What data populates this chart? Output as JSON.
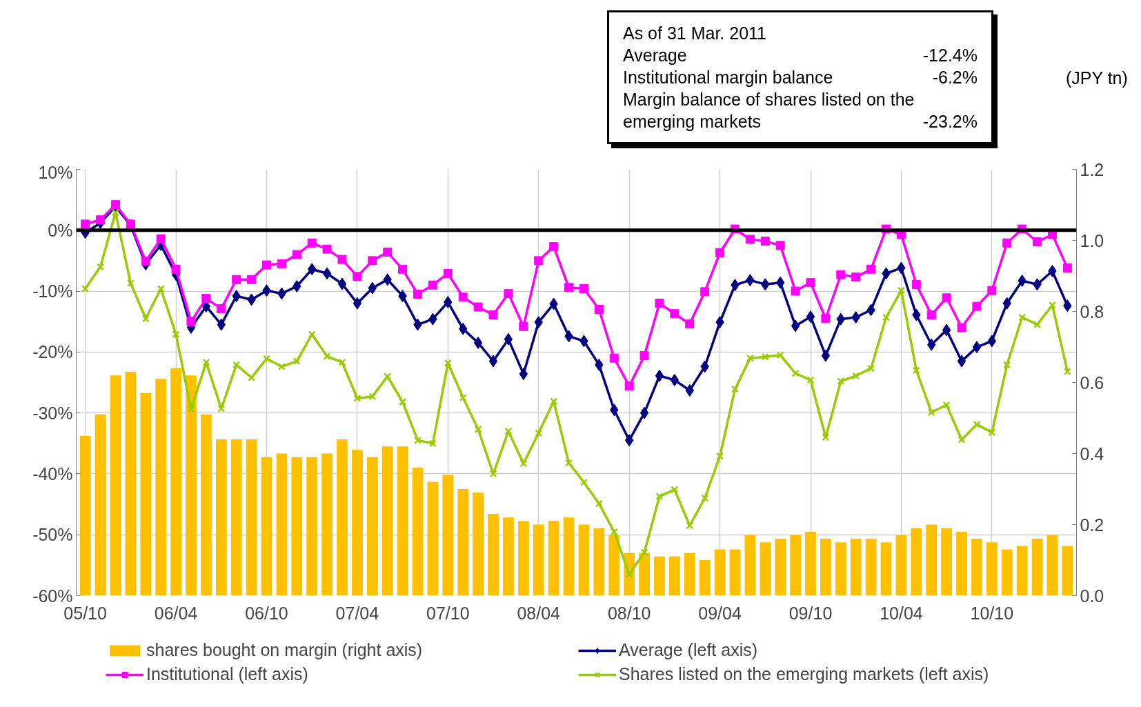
{
  "chart_data": {
    "type": "line",
    "categories": [
      "05/10",
      null,
      null,
      null,
      null,
      null,
      "06/04",
      null,
      null,
      null,
      null,
      null,
      "06/10",
      null,
      null,
      null,
      null,
      null,
      "07/04",
      null,
      null,
      null,
      null,
      null,
      "07/10",
      null,
      null,
      null,
      null,
      null,
      "08/04",
      null,
      null,
      null,
      null,
      null,
      "08/10",
      null,
      null,
      null,
      null,
      null,
      "09/04",
      null,
      null,
      null,
      null,
      null,
      "09/10",
      null,
      null,
      null,
      null,
      null,
      "10/04",
      null,
      null,
      null,
      null,
      null,
      "10/10",
      null,
      null,
      null,
      null,
      null
    ],
    "series": [
      {
        "name": "shares bought on margin (right axis)",
        "type": "bar",
        "axis": "y2",
        "color": "#ffc000",
        "values": [
          0.45,
          0.51,
          0.62,
          0.63,
          0.57,
          0.61,
          0.64,
          0.62,
          0.51,
          0.44,
          0.44,
          0.44,
          0.39,
          0.4,
          0.39,
          0.39,
          0.4,
          0.44,
          0.41,
          0.39,
          0.42,
          0.42,
          0.36,
          0.32,
          0.34,
          0.3,
          0.29,
          0.23,
          0.22,
          0.21,
          0.2,
          0.21,
          0.22,
          0.2,
          0.19,
          0.17,
          0.12,
          0.12,
          0.11,
          0.11,
          0.12,
          0.1,
          0.13,
          0.13,
          0.17,
          0.15,
          0.16,
          0.17,
          0.18,
          0.16,
          0.15,
          0.16,
          0.16,
          0.15,
          0.17,
          0.19,
          0.2,
          0.19,
          0.18,
          0.16,
          0.15,
          0.13,
          0.14,
          0.16,
          0.17,
          0.14
        ]
      },
      {
        "name": "Average (left axis)",
        "color": "#000080",
        "marker": "diamond",
        "values": [
          -0.4,
          1.2,
          3.9,
          0.8,
          -5.6,
          -2.4,
          -7.3,
          -16.0,
          -12.5,
          -15.5,
          -10.8,
          -11.4,
          -9.9,
          -10.4,
          -9.2,
          -6.4,
          -7.1,
          -8.8,
          -12.0,
          -9.5,
          -8.1,
          -10.8,
          -15.5,
          -14.6,
          -11.8,
          -16.2,
          -18.5,
          -21.5,
          -17.9,
          -23.6,
          -15.1,
          -12.1,
          -17.4,
          -18.2,
          -22.1,
          -29.5,
          -34.5,
          -30.0,
          -23.9,
          -24.6,
          -26.3,
          -22.4,
          -15.1,
          -9.0,
          -8.2,
          -8.9,
          -8.6,
          -15.7,
          -14.2,
          -20.6,
          -14.6,
          -14.3,
          -13.1,
          -7.1,
          -6.2,
          -13.9,
          -18.8,
          -16.4,
          -21.5,
          -19.2,
          -18.2,
          -12.0,
          -8.3,
          -8.9,
          -6.7,
          -12.4
        ]
      },
      {
        "name": "Institutional (left axis)",
        "color": "#ff00ff",
        "marker": "square",
        "values": [
          1.0,
          1.7,
          4.2,
          1.0,
          -5.1,
          -1.4,
          -6.4,
          -15.0,
          -11.2,
          -12.9,
          -8.1,
          -8.1,
          -5.7,
          -5.5,
          -4.0,
          -2.1,
          -3.1,
          -4.8,
          -7.6,
          -5.0,
          -3.6,
          -6.4,
          -10.5,
          -9.0,
          -7.1,
          -11.0,
          -12.6,
          -13.9,
          -10.4,
          -15.8,
          -5.0,
          -2.7,
          -9.4,
          -9.6,
          -13.0,
          -21.0,
          -25.6,
          -20.6,
          -12.0,
          -13.7,
          -15.4,
          -10.1,
          -3.7,
          0.2,
          -1.5,
          -1.8,
          -2.5,
          -10.0,
          -8.6,
          -14.5,
          -7.3,
          -7.7,
          -6.4,
          0.2,
          -0.7,
          -8.9,
          -13.9,
          -11.1,
          -16.0,
          -12.5,
          -9.9,
          -2.1,
          0.2,
          -1.9,
          -0.7,
          -6.2
        ]
      },
      {
        "name": "Shares listed on the emerging markets (left axis)",
        "color": "#99cc00",
        "marker": "cross",
        "values": [
          -9.6,
          -6.0,
          2.9,
          -8.7,
          -14.5,
          -9.6,
          -17.1,
          -29.4,
          -21.7,
          -29.3,
          -22.1,
          -24.2,
          -21.1,
          -22.4,
          -21.5,
          -17.1,
          -20.7,
          -21.7,
          -27.6,
          -27.3,
          -24.0,
          -28.2,
          -34.5,
          -35.0,
          -21.8,
          -27.5,
          -32.7,
          -40.0,
          -33.0,
          -38.3,
          -33.3,
          -28.1,
          -38.2,
          -41.4,
          -44.9,
          -49.5,
          -56.5,
          -52.9,
          -43.7,
          -42.6,
          -48.5,
          -44.0,
          -37.1,
          -26.1,
          -21.0,
          -20.8,
          -20.5,
          -23.5,
          -24.6,
          -34.0,
          -24.8,
          -23.9,
          -22.7,
          -14.3,
          -9.9,
          -23.0,
          -29.9,
          -28.7,
          -34.4,
          -31.9,
          -33.2,
          -22.1,
          -14.3,
          -15.5,
          -12.3,
          -23.2
        ]
      }
    ],
    "ylim": [
      -60,
      10
    ],
    "yticks": [
      {
        "value": 10,
        "label": "10%"
      },
      {
        "value": 0,
        "label": "0%"
      },
      {
        "value": -10,
        "label": "-10%"
      },
      {
        "value": -20,
        "label": "-20%"
      },
      {
        "value": -30,
        "label": "-30%"
      },
      {
        "value": -40,
        "label": "-40%"
      },
      {
        "value": -50,
        "label": "-50%"
      },
      {
        "value": -60,
        "label": "-60%"
      }
    ],
    "y2lim": [
      0,
      1.2
    ],
    "y2ticks": [
      {
        "value": 0,
        "label": "0.0"
      },
      {
        "value": 0.2,
        "label": "0.2"
      },
      {
        "value": 0.4,
        "label": "0.4"
      },
      {
        "value": 0.6,
        "label": "0.6"
      },
      {
        "value": 0.8,
        "label": "0.8"
      },
      {
        "value": 1.0,
        "label": "1.0"
      },
      {
        "value": 1.2,
        "label": "1.2"
      }
    ],
    "y2label": "(JPY tn)",
    "ref_lines": [
      {
        "axis": "y",
        "value": 0,
        "color": "#000000"
      }
    ],
    "annotations": [
      "As of 31 Mar. 2011",
      "Average",
      "-12.4%",
      "Institutional margin balance",
      "-6.2%",
      "Margin balance of shares listed on the emerging markets",
      "-23.2%"
    ],
    "grid": true,
    "legend": "bottom"
  }
}
